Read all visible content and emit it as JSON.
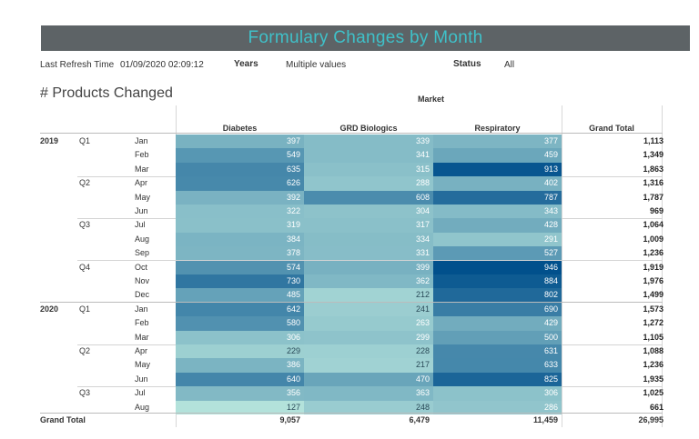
{
  "title": "Formulary Changes by Month",
  "filters": {
    "refresh_label": "Last Refresh Time",
    "refresh_value": "01/09/2020 02:09:12",
    "years_label": "Years",
    "years_value": "Multiple values",
    "status_label": "Status",
    "status_value": "All"
  },
  "heading": "# Products Changed",
  "market_label": "Market",
  "columns": [
    "Diabetes",
    "GRD Biologics",
    "Respiratory",
    "Grand Total"
  ],
  "rows": [
    {
      "year": "2019",
      "quarter": "Q1",
      "month": "Jan",
      "diabetes": "397",
      "grd": "339",
      "resp": "377",
      "total": "1,113"
    },
    {
      "year": "",
      "quarter": "",
      "month": "Feb",
      "diabetes": "549",
      "grd": "341",
      "resp": "459",
      "total": "1,349"
    },
    {
      "year": "",
      "quarter": "",
      "month": "Mar",
      "diabetes": "635",
      "grd": "315",
      "resp": "913",
      "total": "1,863"
    },
    {
      "year": "",
      "quarter": "Q2",
      "month": "Apr",
      "diabetes": "626",
      "grd": "288",
      "resp": "402",
      "total": "1,316"
    },
    {
      "year": "",
      "quarter": "",
      "month": "May",
      "diabetes": "392",
      "grd": "608",
      "resp": "787",
      "total": "1,787"
    },
    {
      "year": "",
      "quarter": "",
      "month": "Jun",
      "diabetes": "322",
      "grd": "304",
      "resp": "343",
      "total": "969"
    },
    {
      "year": "",
      "quarter": "Q3",
      "month": "Jul",
      "diabetes": "319",
      "grd": "317",
      "resp": "428",
      "total": "1,064"
    },
    {
      "year": "",
      "quarter": "",
      "month": "Aug",
      "diabetes": "384",
      "grd": "334",
      "resp": "291",
      "total": "1,009"
    },
    {
      "year": "",
      "quarter": "",
      "month": "Sep",
      "diabetes": "378",
      "grd": "331",
      "resp": "527",
      "total": "1,236"
    },
    {
      "year": "",
      "quarter": "Q4",
      "month": "Oct",
      "diabetes": "574",
      "grd": "399",
      "resp": "946",
      "total": "1,919"
    },
    {
      "year": "",
      "quarter": "",
      "month": "Nov",
      "diabetes": "730",
      "grd": "362",
      "resp": "884",
      "total": "1,976"
    },
    {
      "year": "",
      "quarter": "",
      "month": "Dec",
      "diabetes": "485",
      "grd": "212",
      "resp": "802",
      "total": "1,499"
    },
    {
      "year": "2020",
      "quarter": "Q1",
      "month": "Jan",
      "diabetes": "642",
      "grd": "241",
      "resp": "690",
      "total": "1,573"
    },
    {
      "year": "",
      "quarter": "",
      "month": "Feb",
      "diabetes": "580",
      "grd": "263",
      "resp": "429",
      "total": "1,272"
    },
    {
      "year": "",
      "quarter": "",
      "month": "Mar",
      "diabetes": "306",
      "grd": "299",
      "resp": "500",
      "total": "1,105"
    },
    {
      "year": "",
      "quarter": "Q2",
      "month": "Apr",
      "diabetes": "229",
      "grd": "228",
      "resp": "631",
      "total": "1,088"
    },
    {
      "year": "",
      "quarter": "",
      "month": "May",
      "diabetes": "386",
      "grd": "217",
      "resp": "633",
      "total": "1,236"
    },
    {
      "year": "",
      "quarter": "",
      "month": "Jun",
      "diabetes": "640",
      "grd": "470",
      "resp": "825",
      "total": "1,935"
    },
    {
      "year": "",
      "quarter": "Q3",
      "month": "Jul",
      "diabetes": "356",
      "grd": "363",
      "resp": "306",
      "total": "1,025"
    },
    {
      "year": "",
      "quarter": "",
      "month": "Aug",
      "diabetes": "127",
      "grd": "248",
      "resp": "286",
      "total": "661"
    }
  ],
  "grand_total": {
    "label": "Grand Total",
    "diabetes": "9,057",
    "grd": "6,479",
    "resp": "11,459",
    "total": "26,995"
  },
  "colors": {
    "title_bg": "#5d6366",
    "title_text": "#3fc1c9",
    "scale_low": "#b5e3dc",
    "scale_high": "#004f8c"
  }
}
